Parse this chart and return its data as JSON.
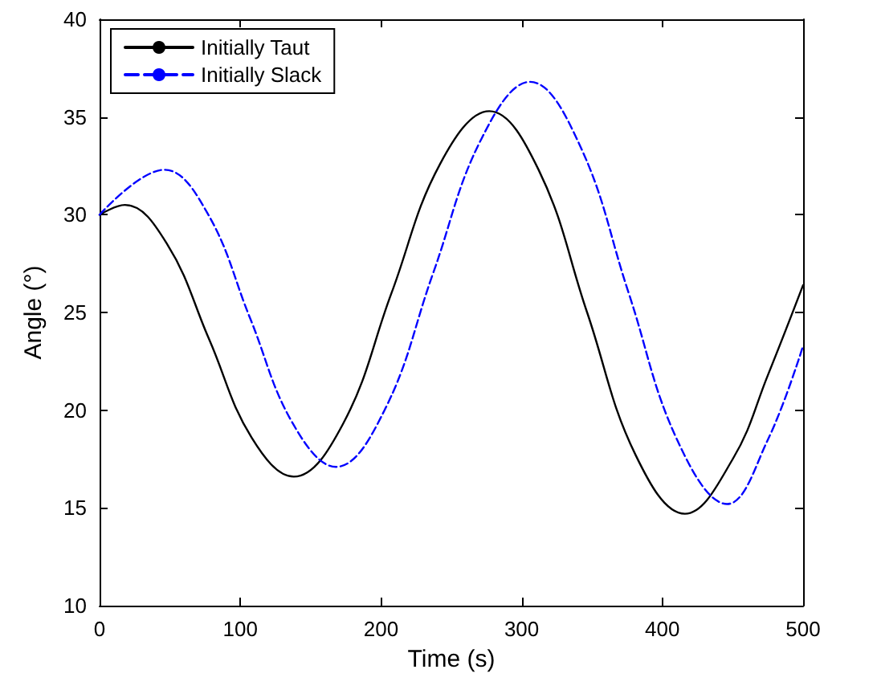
{
  "chart_data": {
    "type": "line",
    "xlabel": "Time (s)",
    "ylabel": "Angle (°)",
    "xlim": [
      0,
      500
    ],
    "xticks": [
      0,
      100,
      200,
      300,
      400,
      500
    ],
    "ylim": [
      10,
      40
    ],
    "yticks": [
      10,
      15,
      20,
      25,
      30,
      35,
      40
    ],
    "grid": false,
    "legend": "top left",
    "marker": "none",
    "series": [
      {
        "name": "Initially Taut",
        "color": "#000000",
        "line_style": "solid",
        "x": [
          0,
          18,
          48,
          78,
          108,
          138,
          173,
          207.5,
          242,
          277,
          312,
          346.5,
          381,
          416,
          450,
          475,
          500
        ],
        "values": [
          30.0,
          30.5,
          28.5,
          23.6,
          18.6,
          16.6,
          19.3,
          26.0,
          32.6,
          35.3,
          32.3,
          25.0,
          17.7,
          14.7,
          17.5,
          21.8,
          26.4
        ]
      },
      {
        "name": "Initially Slack",
        "color": "#0000ff",
        "line_style": "dashed",
        "x": [
          0,
          46,
          76.5,
          107,
          137.5,
          168,
          202.5,
          237,
          271.5,
          306,
          341,
          376,
          411,
          446,
          475,
          500
        ],
        "values": [
          30.0,
          32.3,
          30.1,
          24.7,
          19.3,
          17.1,
          20.0,
          27.0,
          33.9,
          36.8,
          33.6,
          26.0,
          18.4,
          15.2,
          18.5,
          23.3
        ]
      }
    ]
  }
}
